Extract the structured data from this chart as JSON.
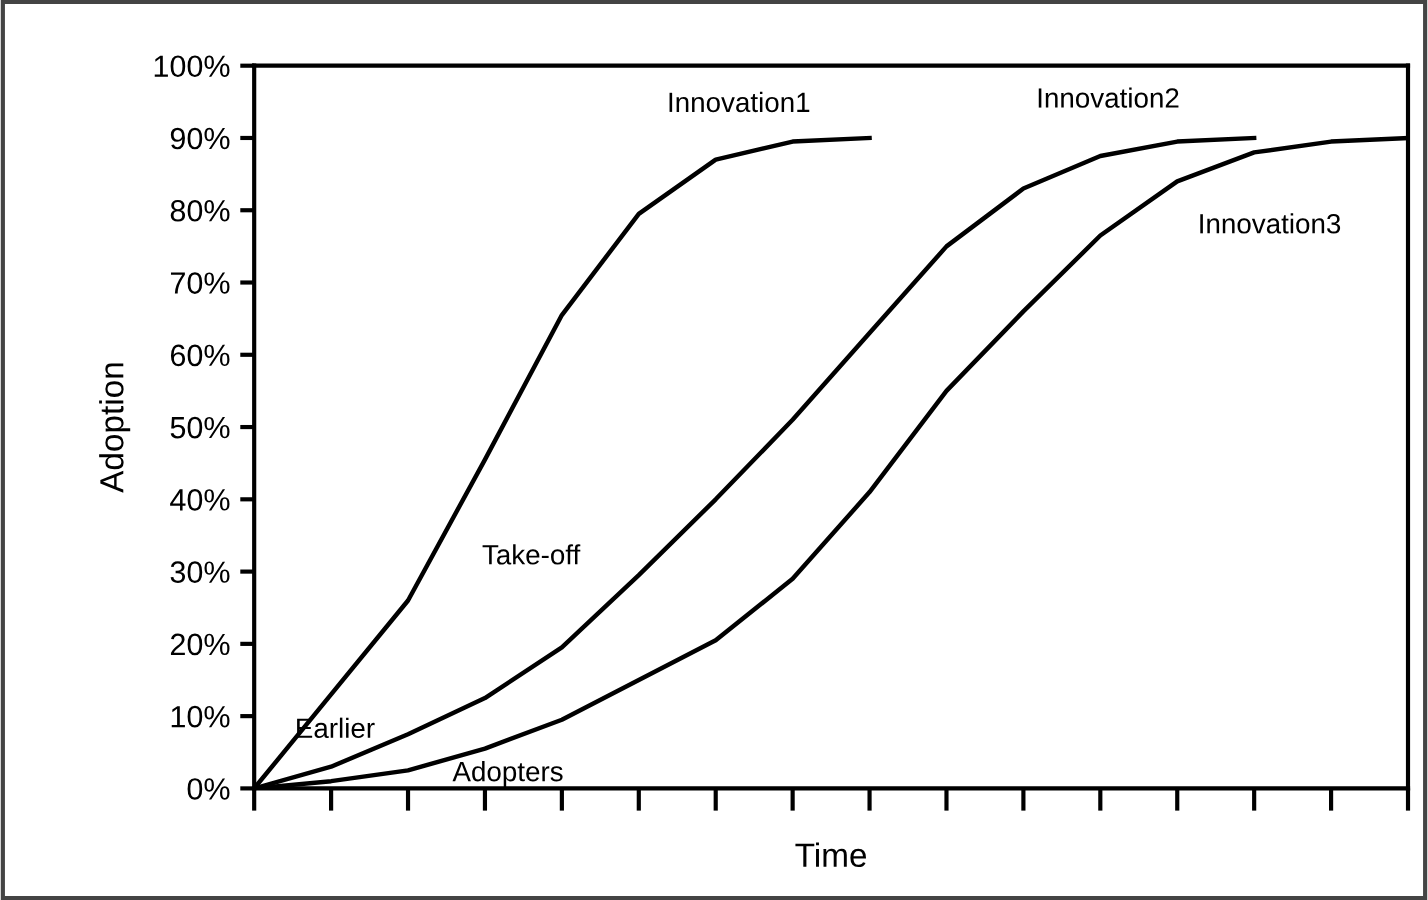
{
  "chart_data": {
    "type": "line",
    "xlabel": "Time",
    "ylabel": "Adoption",
    "categories": [
      null,
      null,
      null,
      null,
      null,
      null,
      null,
      null,
      null,
      null,
      null,
      null,
      null,
      null,
      null,
      null
    ],
    "series": [
      {
        "name": "Innovation1",
        "color": "#000000",
        "values": [
          0,
          13,
          26,
          45.5,
          65.5,
          79.5,
          87,
          89.5,
          90,
          null,
          null,
          null,
          null,
          null,
          null,
          null
        ]
      },
      {
        "name": "Innovation2",
        "color": "#000000",
        "values": [
          0,
          3,
          7.5,
          12.5,
          19.5,
          29.5,
          40,
          51,
          63,
          75,
          83,
          87.5,
          89.5,
          90,
          null,
          null
        ]
      },
      {
        "name": "Innovation3",
        "color": "#000000",
        "values": [
          0,
          1,
          2.5,
          5.5,
          9.5,
          15,
          20.5,
          29,
          41,
          55,
          66,
          76.5,
          84,
          88,
          89.5,
          90
        ]
      }
    ],
    "annotations": [
      "Take-off",
      "Earlier",
      "Adopters"
    ],
    "ylim": [
      0,
      100
    ],
    "yticks": [
      {
        "value": 0,
        "label": "0%"
      },
      {
        "value": 10,
        "label": "10%"
      },
      {
        "value": 20,
        "label": "20%"
      },
      {
        "value": 30,
        "label": "30%"
      },
      {
        "value": 40,
        "label": "40%"
      },
      {
        "value": 50,
        "label": "50%"
      },
      {
        "value": 60,
        "label": "60%"
      },
      {
        "value": 70,
        "label": "70%"
      },
      {
        "value": 80,
        "label": "80%"
      },
      {
        "value": 90,
        "label": "90%"
      },
      {
        "value": 100,
        "label": "100%"
      }
    ],
    "grid": false,
    "legend": false,
    "marker": "none",
    "line_style": "solid"
  }
}
